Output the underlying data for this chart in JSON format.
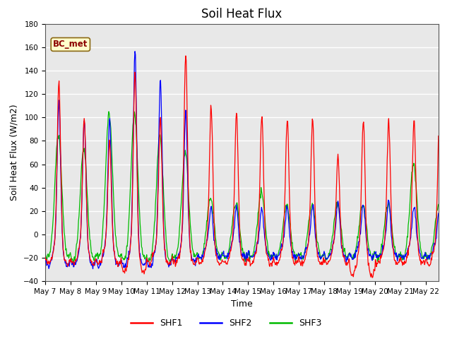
{
  "title": "Soil Heat Flux",
  "xlabel": "Time",
  "ylabel": "Soil Heat Flux (W/m2)",
  "ylim": [
    -40,
    180
  ],
  "yticks": [
    -40,
    -20,
    0,
    20,
    40,
    60,
    80,
    100,
    120,
    140,
    160,
    180
  ],
  "x_tick_labels": [
    "May 7",
    "May 8",
    "May 9",
    "May 10",
    "May 11",
    "May 12",
    "May 13",
    "May 14",
    "May 15",
    "May 16",
    "May 17",
    "May 18",
    "May 19",
    "May 20",
    "May 21",
    "May 22"
  ],
  "shf1_color": "#ff0000",
  "shf2_color": "#0000ff",
  "shf3_color": "#00bb00",
  "line_width": 0.9,
  "legend_label1": "SHF1",
  "legend_label2": "SHF2",
  "legend_label3": "SHF3",
  "annotation_text": "BC_met",
  "plot_bg_color": "#e8e8e8",
  "title_fontsize": 12,
  "axis_label_fontsize": 9,
  "tick_fontsize": 7.5
}
